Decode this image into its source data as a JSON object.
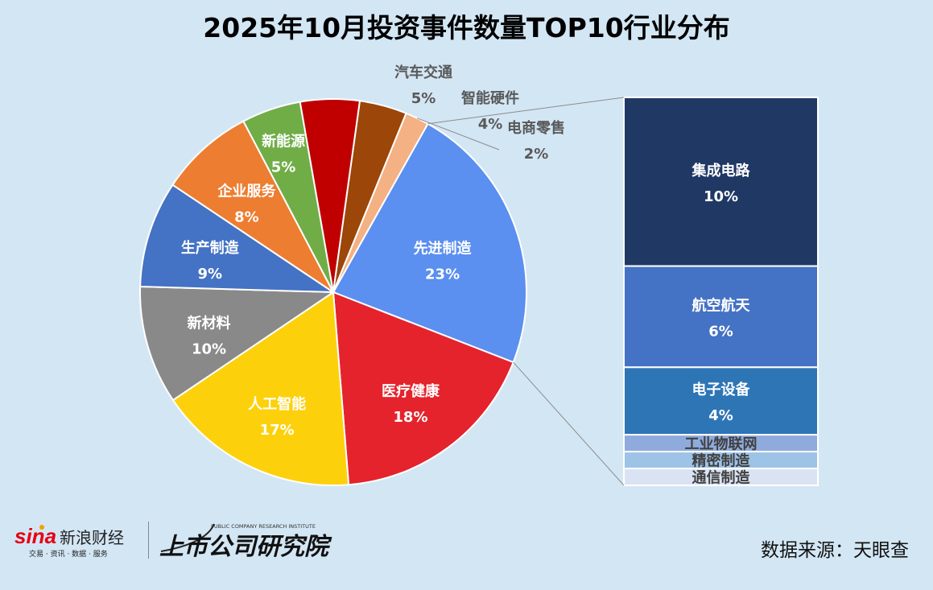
{
  "title": "2025年10月投资事件数量TOP10行业分布",
  "source": "数据来源：天眼查",
  "logos": {
    "sina_name": "新浪财经",
    "sina_sub": "交易 · 资讯 · 数据 · 服务",
    "institute_name": "上市公司研究院",
    "institute_en": "PUBLIC COMPANY RESEARCH INSTITUTE"
  },
  "chart_data": {
    "type": "pie",
    "title": "2025年10月投资事件数量TOP10行业分布",
    "slices": [
      {
        "label": "先进制造",
        "value": 23,
        "display": "23%",
        "color": "#5b8ff0"
      },
      {
        "label": "医疗健康",
        "value": 18,
        "display": "18%",
        "color": "#e5232c"
      },
      {
        "label": "人工智能",
        "value": 17,
        "display": "17%",
        "color": "#fdd00c"
      },
      {
        "label": "新材料",
        "value": 10,
        "display": "10%",
        "color": "#898989"
      },
      {
        "label": "生产制造",
        "value": 9,
        "display": "9%",
        "color": "#4472c4"
      },
      {
        "label": "企业服务",
        "value": 8,
        "display": "8%",
        "color": "#ed7d31"
      },
      {
        "label": "新能源",
        "value": 5,
        "display": "5%",
        "color": "#70ad47"
      },
      {
        "label": "汽车交通",
        "value": 5,
        "display": "5%",
        "color": "#c00000"
      },
      {
        "label": "智能硬件",
        "value": 4,
        "display": "4%",
        "color": "#9c4609"
      },
      {
        "label": "电商零售",
        "value": 2,
        "display": "2%",
        "color": "#f4b183"
      }
    ],
    "breakdown": {
      "parent": "先进制造",
      "segments": [
        {
          "label": "集成电路",
          "value": 10,
          "display": "10%",
          "color": "#203864"
        },
        {
          "label": "航空航天",
          "value": 6,
          "display": "6%",
          "color": "#4472c4"
        },
        {
          "label": "电子设备",
          "value": 4,
          "display": "4%",
          "color": "#2e75b6"
        },
        {
          "label": "工业物联网",
          "value": 1,
          "display": "",
          "color": "#8faadc"
        },
        {
          "label": "精密制造",
          "value": 1,
          "display": "",
          "color": "#9dc3e6"
        },
        {
          "label": "通信制造",
          "value": 1,
          "display": "",
          "color": "#dae3f3"
        }
      ]
    }
  }
}
